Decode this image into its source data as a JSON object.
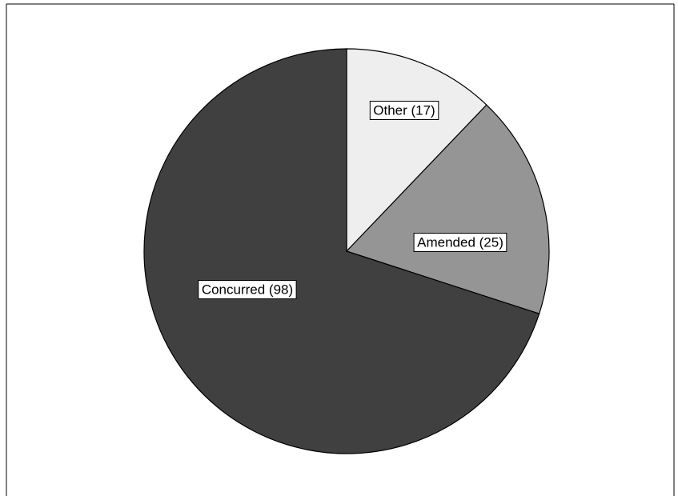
{
  "chart_data": {
    "type": "pie",
    "title": "",
    "start_angle_deg": 0,
    "direction": "clockwise",
    "slices": [
      {
        "name": "Other",
        "value": 17,
        "label": "Other (17)",
        "color": "#eeeeee"
      },
      {
        "name": "Amended",
        "value": 25,
        "label": "Amended (25)",
        "color": "#959595"
      },
      {
        "name": "Concurred",
        "value": 98,
        "label": "Concurred (98)",
        "color": "#404040"
      }
    ],
    "legend": "none",
    "data_labels": "inside"
  }
}
